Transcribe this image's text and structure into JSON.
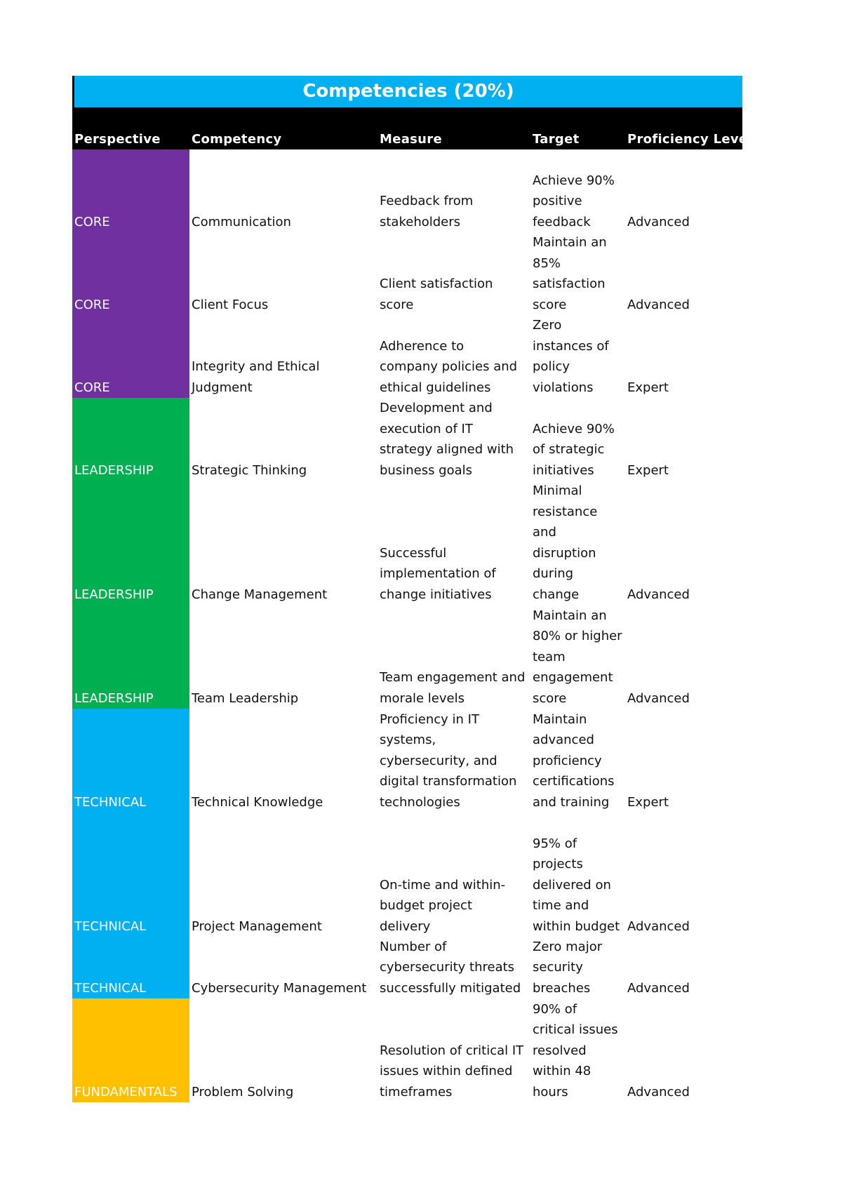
{
  "title": "Competencies (20%)",
  "headers": {
    "perspective": "Perspective",
    "competency": "Competency",
    "measure": "Measure",
    "target": "Target",
    "proficiency": "Proficiency Level"
  },
  "colors": {
    "core": "#7030a0",
    "leadership": "#00b050",
    "technical": "#00b0f0",
    "fundamentals": "#ffc000",
    "header_bg": "#000000",
    "title_bg": "#00b0f0"
  },
  "rows": [
    {
      "perspective": "CORE",
      "competency": [
        "Communication"
      ],
      "measure": [
        "Feedback from",
        "stakeholders"
      ],
      "target": [
        "Achieve 90%",
        "positive",
        "feedback"
      ],
      "proficiency": "Advanced"
    },
    {
      "perspective": "CORE",
      "competency": [
        "Client Focus"
      ],
      "measure": [
        "Client satisfaction",
        "score"
      ],
      "target": [
        "Maintain an",
        "85%",
        "satisfaction",
        "score"
      ],
      "proficiency": "Advanced"
    },
    {
      "perspective": "CORE",
      "competency": [
        "Integrity and Ethical",
        "Judgment"
      ],
      "measure": [
        "Adherence to",
        "company policies and",
        "ethical guidelines"
      ],
      "target": [
        "Zero",
        "instances of",
        "policy",
        "violations"
      ],
      "proficiency": "Expert"
    },
    {
      "perspective": "LEADERSHIP",
      "competency": [
        "Strategic Thinking"
      ],
      "measure": [
        "Development and",
        "execution of IT",
        "strategy aligned with",
        "business goals"
      ],
      "target": [
        "Achieve 90%",
        "of strategic",
        "initiatives"
      ],
      "proficiency": "Expert"
    },
    {
      "perspective": "LEADERSHIP",
      "competency": [
        "Change Management"
      ],
      "measure": [
        "Successful",
        "implementation of",
        "change initiatives"
      ],
      "target": [
        "Minimal",
        "resistance",
        "and",
        "disruption",
        "during",
        "change"
      ],
      "proficiency": "Advanced"
    },
    {
      "perspective": "LEADERSHIP",
      "competency": [
        "Team Leadership"
      ],
      "measure": [
        "Team engagement and",
        "morale levels"
      ],
      "target": [
        "Maintain an",
        "80% or higher",
        "team",
        "engagement",
        "score"
      ],
      "proficiency": "Advanced"
    },
    {
      "perspective": "TECHNICAL",
      "competency": [
        "Technical Knowledge"
      ],
      "measure": [
        "Proficiency in IT",
        "systems,",
        "cybersecurity, and",
        "digital transformation",
        "technologies"
      ],
      "target": [
        "Maintain",
        "advanced",
        "proficiency",
        "certifications",
        "and training"
      ],
      "proficiency": "Expert"
    },
    {
      "perspective": "TECHNICAL",
      "competency": [
        "Project Management"
      ],
      "measure": [
        "On-time and within-",
        "budget project",
        "delivery"
      ],
      "target": [
        "95% of",
        "projects",
        "delivered on",
        "time and",
        "within budget"
      ],
      "proficiency": "Advanced"
    },
    {
      "perspective": "TECHNICAL",
      "competency": [
        "Cybersecurity Management"
      ],
      "measure": [
        "Number of",
        "cybersecurity threats",
        "successfully mitigated"
      ],
      "target": [
        "Zero major",
        "security",
        "breaches"
      ],
      "proficiency": "Advanced"
    },
    {
      "perspective": "FUNDAMENTALS",
      "competency": [
        "Problem Solving"
      ],
      "measure": [
        "Resolution of critical IT",
        "issues within defined",
        "timeframes"
      ],
      "target": [
        "90% of",
        "critical issues",
        "resolved",
        "within 48",
        "hours"
      ],
      "proficiency": "Advanced"
    }
  ]
}
